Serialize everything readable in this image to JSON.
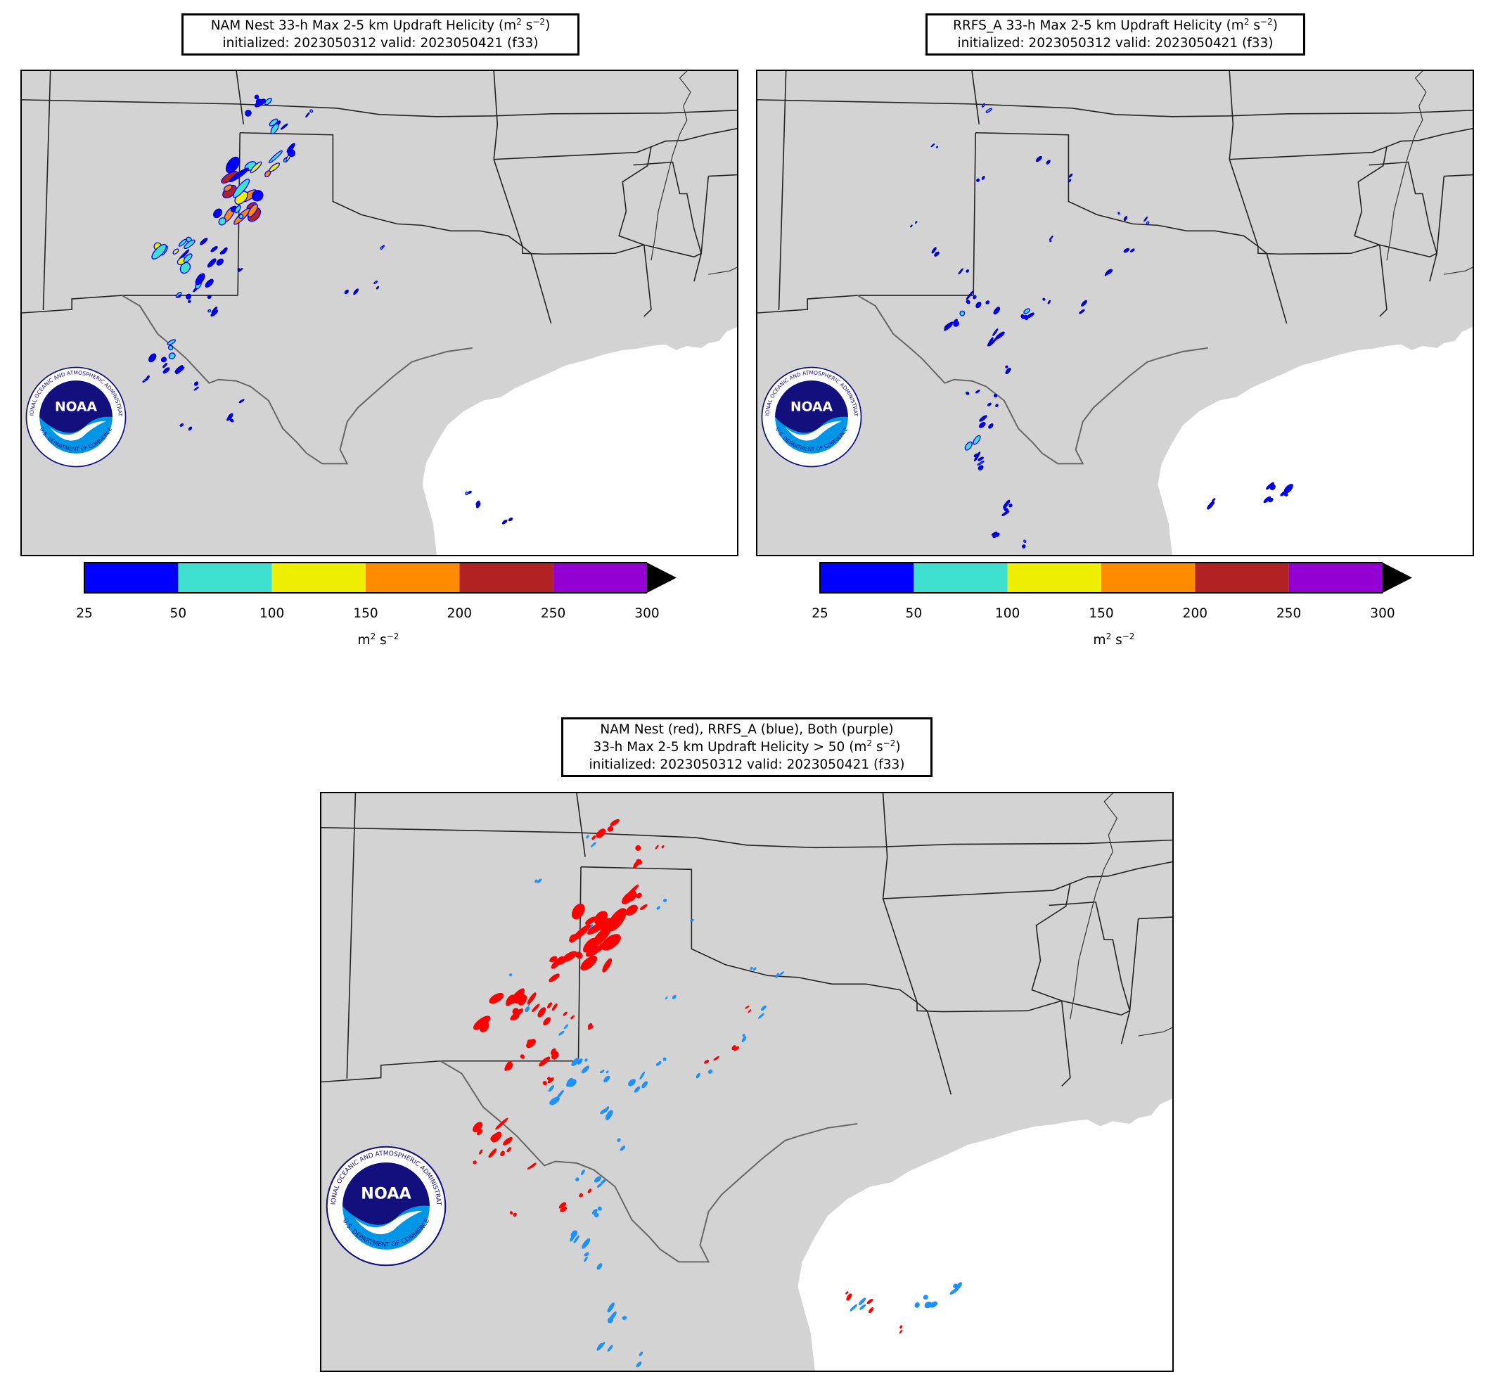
{
  "panels": [
    {
      "id": "nam-nest",
      "title_line1": "NAM Nest 33-h Max 2-5 km Updraft Helicity (m",
      "title_sup1": "2",
      "title_mid": " s",
      "title_sup2": "−2",
      "title_end": ")",
      "title_line2": "initialized: 2023050312 valid: 2023050421 (f33)"
    },
    {
      "id": "rrfs-a",
      "title_line1": "RRFS_A 33-h Max 2-5 km Updraft Helicity (m",
      "title_sup1": "2",
      "title_mid": " s",
      "title_sup2": "−2",
      "title_end": ")",
      "title_line2": "initialized: 2023050312 valid: 2023050421 (f33)"
    },
    {
      "id": "comparison",
      "title_line1": "NAM Nest (red), RRFS_A (blue), Both (purple)",
      "title_line2a": "33-h Max 2-5 km Updraft Helicity > 50 (m",
      "title_sup1": "2",
      "title_mid": " s",
      "title_sup2": "−2",
      "title_end": ")",
      "title_line3": "initialized: 2023050312 valid: 2023050421 (f33)"
    }
  ],
  "colorbar": {
    "ticks": [
      "25",
      "50",
      "100",
      "150",
      "200",
      "250",
      "300"
    ],
    "colors": [
      "#0000ff",
      "#40e0d0",
      "#eeee00",
      "#ff8c00",
      "#b22222",
      "#9400d3"
    ],
    "extend_color": "#000000",
    "unit_base": "m",
    "unit_sup1": "2",
    "unit_mid": " s",
    "unit_sup2": "−2"
  },
  "comparison_colors": {
    "nam_nest": "#ff0000",
    "rrfs_a": "#1e90ff",
    "both": "#9400d3"
  },
  "logo": {
    "text": "NOAA",
    "ring_top": "NATIONAL OCEANIC AND ATMOSPHERIC ADMINISTRATION",
    "ring_bottom": "U.S. DEPARTMENT OF COMMERCE"
  }
}
